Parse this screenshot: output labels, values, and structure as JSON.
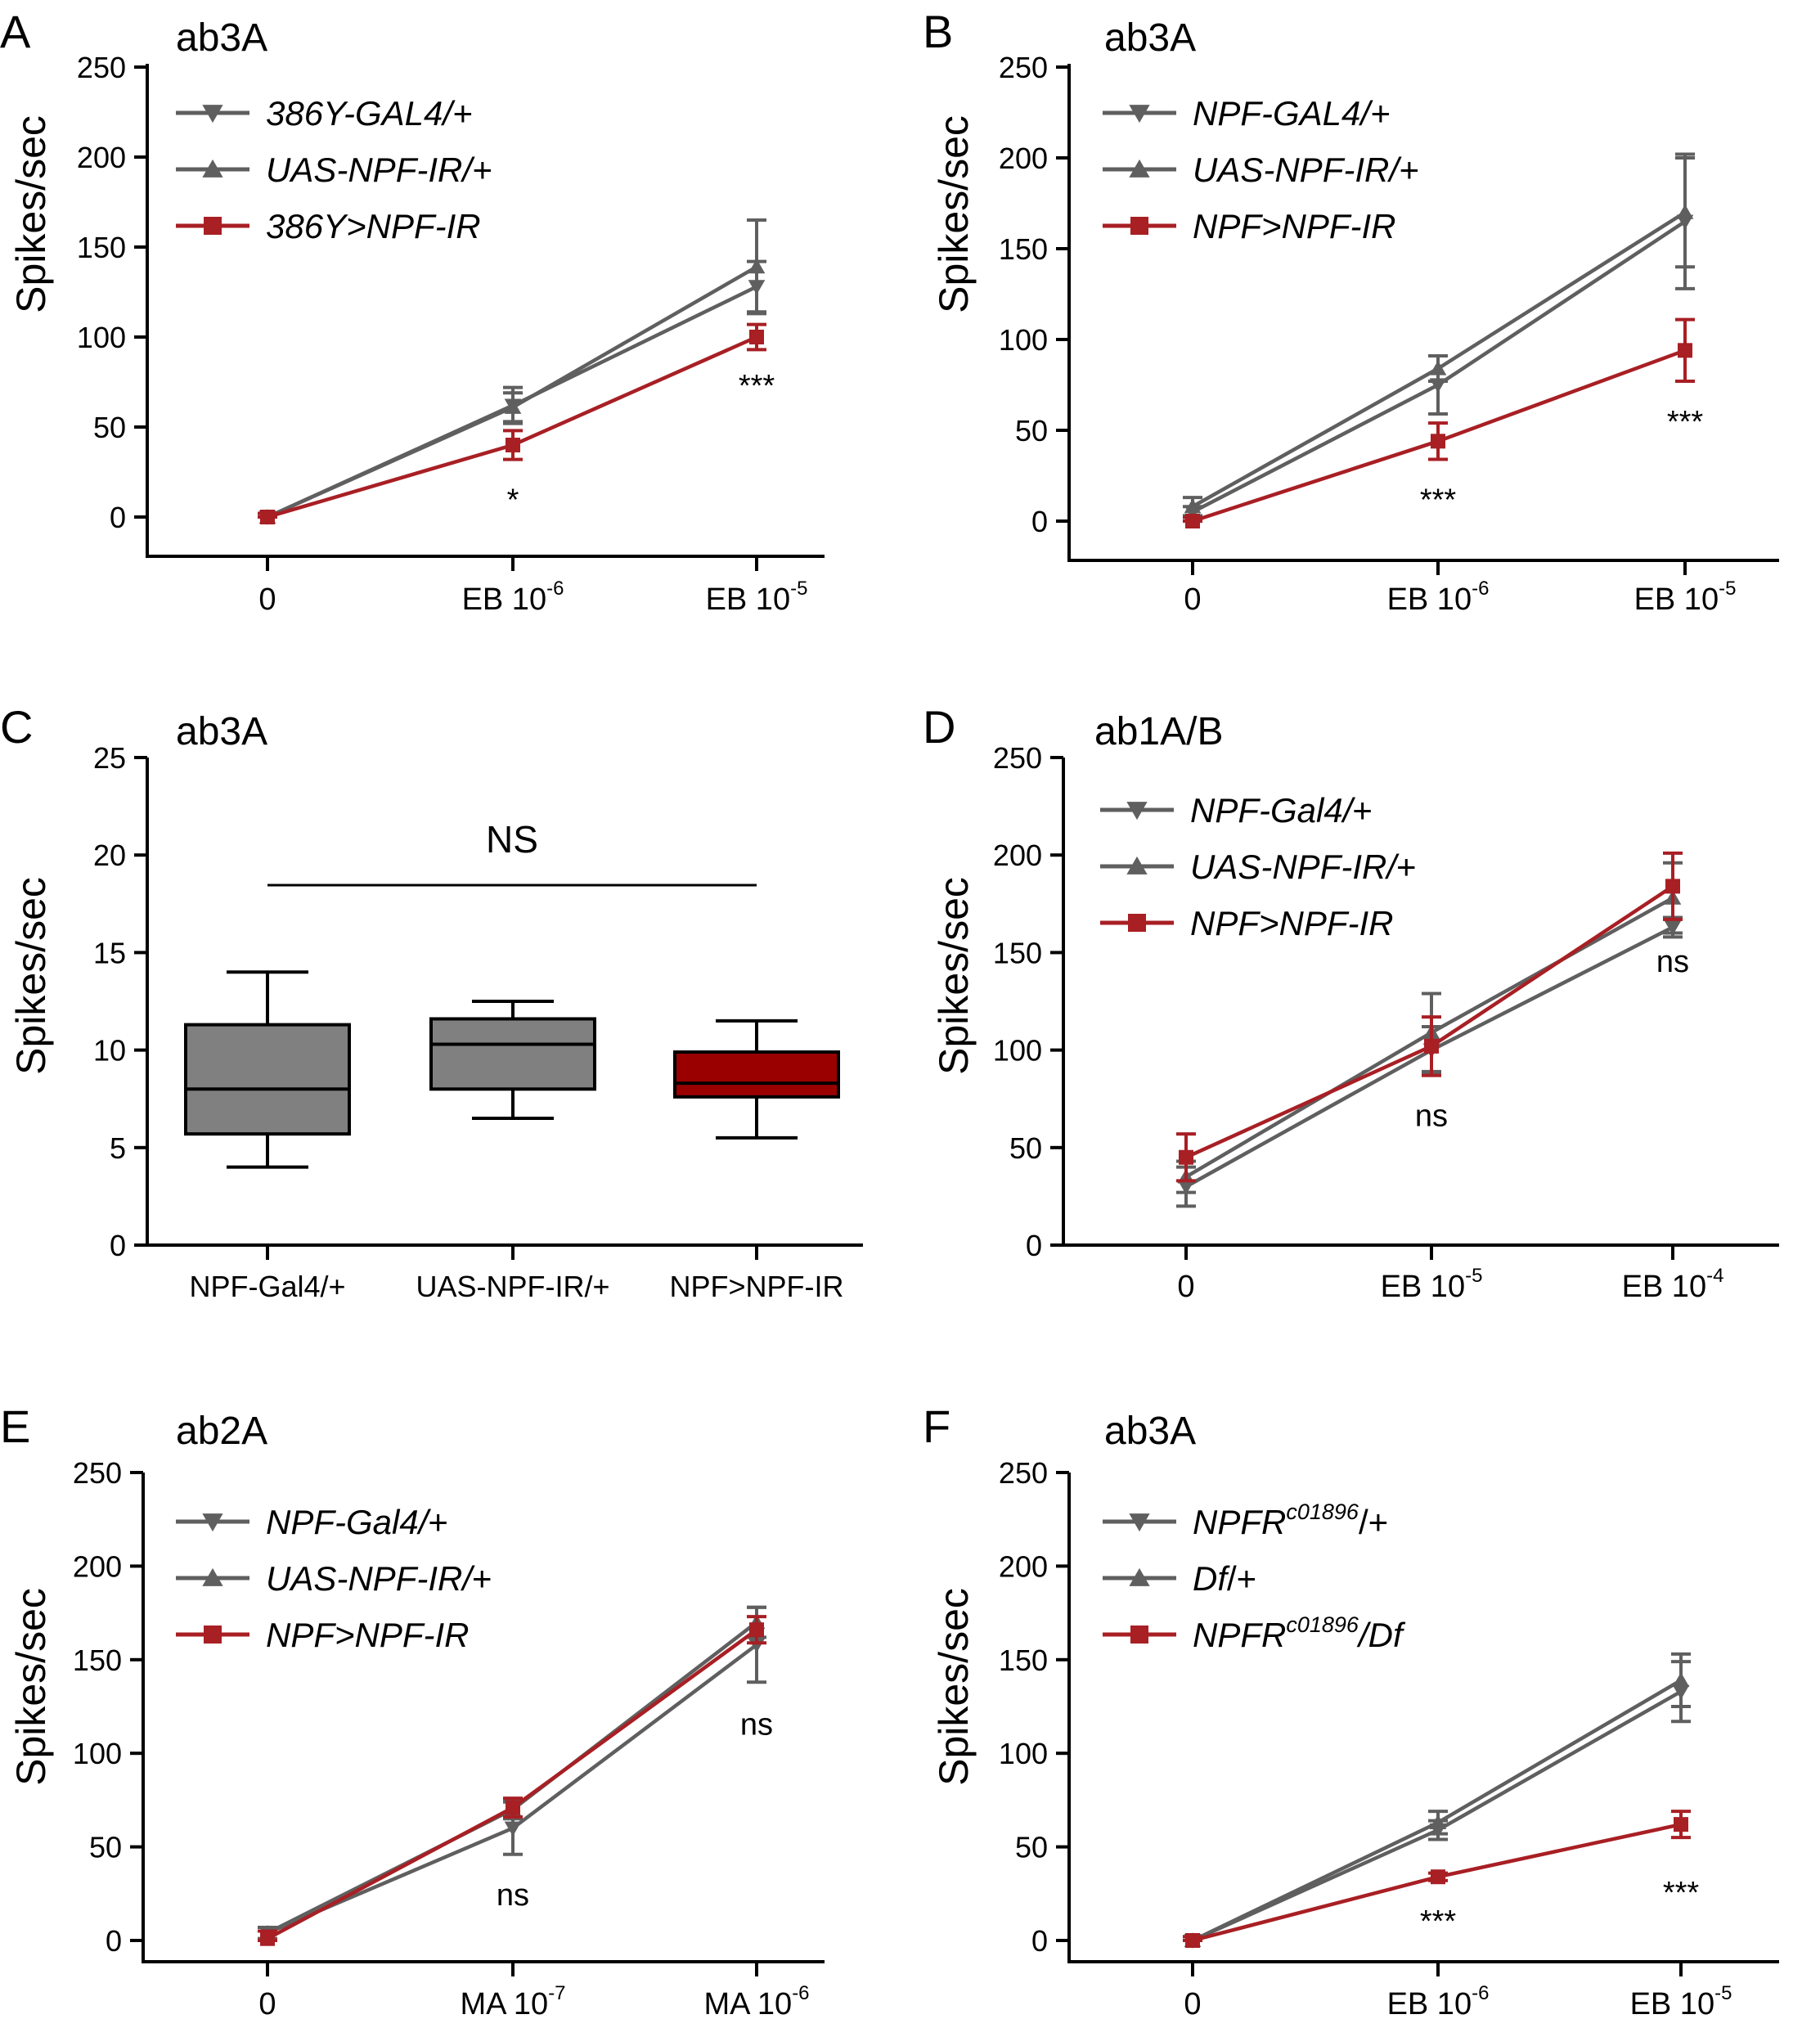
{
  "colors": {
    "gray": "#5f5f5f",
    "red": "#a81f24",
    "box_red": "#9b0000",
    "box_gray": "#808080",
    "axis": "#000000"
  },
  "chart_data": [
    {
      "panel": "A",
      "title": "ab3A",
      "type": "line",
      "ylabel": "Spikes/sec",
      "ylim": [
        0,
        250
      ],
      "yticks": [
        0,
        50,
        100,
        150,
        200,
        250
      ],
      "x_categories": [
        {
          "base": "0",
          "sup": ""
        },
        {
          "base": "EB 10",
          "sup": "-6"
        },
        {
          "base": "EB 10",
          "sup": "-5"
        }
      ],
      "series": [
        {
          "name": "386Y-GAL4/+",
          "marker": "triangle-down",
          "color": "gray",
          "values": [
            0,
            62,
            128
          ],
          "errors": [
            2,
            10,
            14
          ]
        },
        {
          "name": "UAS-NPF-IR/+",
          "marker": "triangle-up",
          "color": "gray",
          "values": [
            0,
            61,
            139
          ],
          "errors": [
            2,
            8,
            26
          ]
        },
        {
          "name": "386Y>NPF-IR",
          "marker": "square",
          "color": "red",
          "values": [
            0,
            40,
            100
          ],
          "errors": [
            2,
            8,
            7
          ]
        }
      ],
      "annotations": [
        "",
        "*",
        "***"
      ]
    },
    {
      "panel": "B",
      "title": "ab3A",
      "type": "line",
      "ylabel": "Spikes/sec",
      "ylim": [
        0,
        250
      ],
      "yticks": [
        0,
        50,
        100,
        150,
        200,
        250
      ],
      "x_categories": [
        {
          "base": "0",
          "sup": ""
        },
        {
          "base": "EB 10",
          "sup": "-6"
        },
        {
          "base": "EB 10",
          "sup": "-5"
        }
      ],
      "series": [
        {
          "name": "NPF-GAL4/+",
          "marker": "triangle-down",
          "color": "gray",
          "values": [
            5,
            75,
            165
          ],
          "errors": [
            3,
            16,
            37
          ]
        },
        {
          "name": "UAS-NPF-IR/+",
          "marker": "triangle-up",
          "color": "gray",
          "values": [
            8,
            84,
            170
          ],
          "errors": [
            5,
            7,
            30
          ]
        },
        {
          "name": "NPF>NPF-IR",
          "marker": "square",
          "color": "red",
          "values": [
            0,
            44,
            94
          ],
          "errors": [
            2,
            10,
            17
          ]
        }
      ],
      "annotations": [
        "",
        "***",
        "***"
      ]
    },
    {
      "panel": "C",
      "title": "ab3A",
      "type": "box",
      "ylabel": "Spikes/sec",
      "ylim": [
        0,
        25
      ],
      "yticks": [
        0,
        5,
        10,
        15,
        20,
        25
      ],
      "categories": [
        "NPF-Gal4/+",
        "UAS-NPF-IR/+",
        "NPF>NPF-IR"
      ],
      "boxes": [
        {
          "min": 4,
          "q1": 5.7,
          "median": 8,
          "q3": 11.3,
          "max": 14,
          "fill": "box_gray"
        },
        {
          "min": 6.5,
          "q1": 8,
          "median": 10.3,
          "q3": 11.6,
          "max": 12.5,
          "fill": "box_gray"
        },
        {
          "min": 5.5,
          "q1": 7.6,
          "median": 8.3,
          "q3": 9.9,
          "max": 11.5,
          "fill": "box_red"
        }
      ],
      "annotation": "NS"
    },
    {
      "panel": "D",
      "title": "ab1A/B",
      "type": "line",
      "ylabel": "Spikes/sec",
      "ylim": [
        0,
        250
      ],
      "yticks": [
        0,
        50,
        100,
        150,
        200,
        250
      ],
      "x_categories": [
        {
          "base": "0",
          "sup": ""
        },
        {
          "base": "EB 10",
          "sup": "-5"
        },
        {
          "base": "EB 10",
          "sup": "-4"
        }
      ],
      "series": [
        {
          "name": "NPF-Gal4/",
          "name_suffix": "+",
          "marker": "triangle-down",
          "color": "gray",
          "values": [
            30,
            100,
            163
          ],
          "errors": [
            10,
            12,
            5
          ]
        },
        {
          "name": "UAS-NPF-IR/",
          "name_suffix": "+",
          "marker": "triangle-up",
          "color": "gray",
          "values": [
            35,
            109,
            178
          ],
          "errors": [
            8,
            20,
            18
          ]
        },
        {
          "name": "NPF>NPF-IR",
          "marker": "square",
          "color": "red",
          "values": [
            45,
            102,
            184
          ],
          "errors": [
            12,
            15,
            17
          ]
        }
      ],
      "annotations": [
        "",
        "ns",
        "ns"
      ]
    },
    {
      "panel": "E",
      "title": "ab2A",
      "type": "line",
      "ylabel": "Spikes/sec",
      "ylim": [
        0,
        250
      ],
      "yticks": [
        0,
        50,
        100,
        150,
        200,
        250
      ],
      "x_categories": [
        {
          "base": "0",
          "sup": ""
        },
        {
          "base": "MA 10",
          "sup": "-7"
        },
        {
          "base": "MA 10",
          "sup": "-6"
        }
      ],
      "series": [
        {
          "name": "NPF-Gal4/",
          "name_suffix": "+",
          "marker": "triangle-down",
          "color": "gray",
          "values": [
            4,
            60,
            158
          ],
          "errors": [
            3,
            14,
            20
          ]
        },
        {
          "name": "UAS-NPF-IR/",
          "name_suffix": "+",
          "marker": "triangle-up",
          "color": "gray",
          "values": [
            4,
            70,
            170
          ],
          "errors": [
            3,
            5,
            8
          ]
        },
        {
          "name": "NPF>NPF-IR",
          "marker": "square",
          "color": "red",
          "values": [
            1,
            71,
            166
          ],
          "errors": [
            4,
            5,
            7
          ]
        }
      ],
      "annotations": [
        "",
        "ns",
        "ns"
      ]
    },
    {
      "panel": "F",
      "title": "ab3A",
      "type": "line",
      "ylabel": "Spikes/sec",
      "ylim": [
        0,
        250
      ],
      "yticks": [
        0,
        50,
        100,
        150,
        200,
        250
      ],
      "x_categories": [
        {
          "base": "0",
          "sup": ""
        },
        {
          "base": "EB 10",
          "sup": "-6"
        },
        {
          "base": "EB 10",
          "sup": "-5"
        }
      ],
      "series": [
        {
          "name": "NPFR",
          "name_sup": "c01896",
          "name_suffix": "/+",
          "marker": "triangle-down",
          "color": "gray",
          "values": [
            0,
            59,
            133
          ],
          "errors": [
            2,
            5,
            16
          ]
        },
        {
          "name": "Df",
          "name_suffix": "/+",
          "marker": "triangle-up",
          "color": "gray",
          "values": [
            0,
            63,
            139
          ],
          "errors": [
            2,
            6,
            14
          ]
        },
        {
          "name": "NPFR",
          "name_sup": "c01896",
          "name_suffix": "/Df",
          "marker": "square",
          "color": "red",
          "values": [
            0,
            34,
            62
          ],
          "errors": [
            2,
            2,
            7
          ]
        }
      ],
      "annotations": [
        "",
        "***",
        "***"
      ]
    }
  ]
}
